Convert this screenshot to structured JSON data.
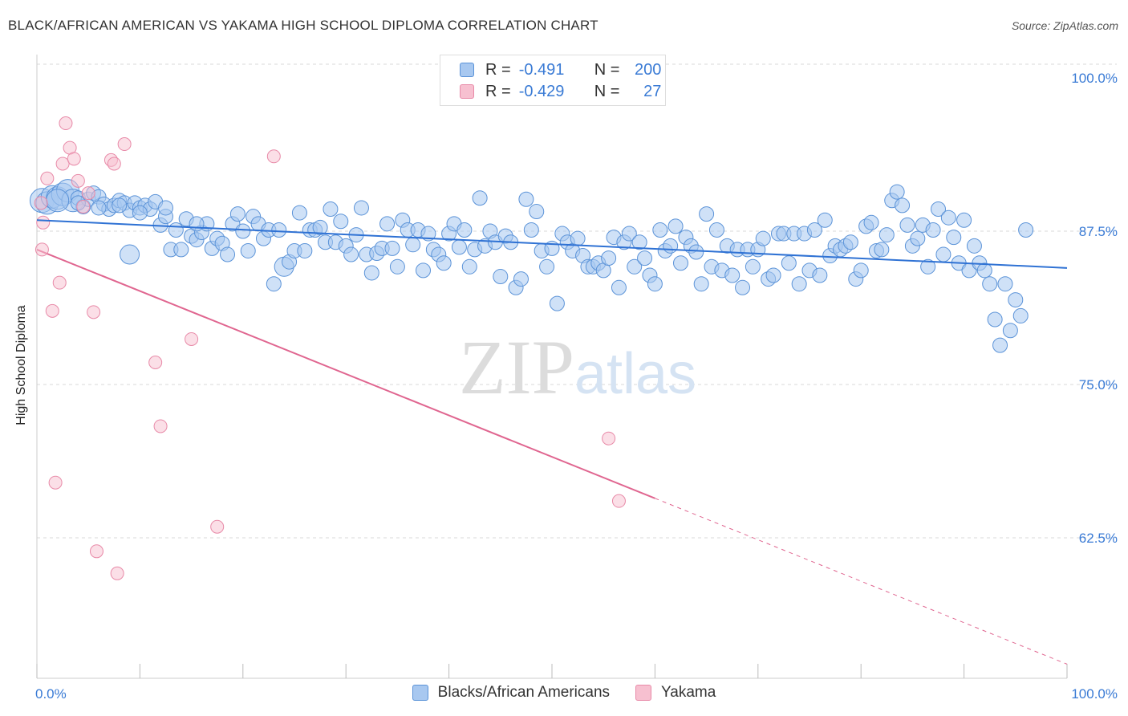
{
  "title": "BLACK/AFRICAN AMERICAN VS YAKAMA HIGH SCHOOL DIPLOMA CORRELATION CHART",
  "source": "Source: ZipAtlas.com",
  "watermark": "ZIPatlas",
  "legend_top": {
    "rows": [
      {
        "r_label": "R =",
        "r_value": "-0.491",
        "n_label": "N =",
        "n_value": "200"
      },
      {
        "r_label": "R =",
        "r_value": "-0.429",
        "n_label": "N =",
        "n_value": "27"
      }
    ]
  },
  "colors": {
    "blue_fill": "#a8c8f0",
    "blue_stroke": "#5b93d8",
    "blue_line": "#2f72d4",
    "pink_fill": "#f7c0d0",
    "pink_stroke": "#e88aa8",
    "pink_line": "#e06690",
    "tick_label": "#3a7bd5",
    "grid": "#d8d8d8"
  },
  "chart_data": {
    "type": "scatter",
    "title": "BLACK/AFRICAN AMERICAN VS YAKAMA HIGH SCHOOL DIPLOMA CORRELATION CHART",
    "xlabel": "",
    "ylabel": "High School Diploma",
    "xlim": [
      0,
      100
    ],
    "ylim": [
      50,
      102
    ],
    "x_ticks": [
      "0.0%",
      "100.0%"
    ],
    "y_ticks": [
      {
        "value": 100,
        "label": "100.0%"
      },
      {
        "value": 87.5,
        "label": "87.5%"
      },
      {
        "value": 75,
        "label": "75.0%"
      },
      {
        "value": 62.5,
        "label": "62.5%"
      }
    ],
    "grid": true,
    "legend_position": "bottom",
    "series": [
      {
        "name": "Blacks/African Americans",
        "color": "#5b93d8",
        "trend": {
          "x": [
            0,
            100
          ],
          "y": [
            88.4,
            84.5
          ],
          "dashed_from": null
        },
        "points": [
          [
            0.5,
            90.0
          ],
          [
            1.0,
            89.8
          ],
          [
            1.5,
            90.3
          ],
          [
            2.0,
            90.2
          ],
          [
            2.5,
            90.5
          ],
          [
            3.0,
            90.8
          ],
          [
            3.5,
            90.0
          ],
          [
            4.0,
            90.2
          ],
          [
            4.5,
            89.5
          ],
          [
            5.0,
            90.1
          ],
          [
            5.5,
            90.6
          ],
          [
            6.0,
            90.3
          ],
          [
            6.5,
            89.7
          ],
          [
            7.0,
            89.3
          ],
          [
            7.5,
            89.6
          ],
          [
            8.0,
            90.0
          ],
          [
            8.5,
            89.8
          ],
          [
            9.0,
            89.2
          ],
          [
            9.5,
            89.8
          ],
          [
            10.0,
            89.4
          ],
          [
            10.5,
            89.6
          ],
          [
            11.0,
            89.3
          ],
          [
            11.5,
            89.9
          ],
          [
            12.0,
            88.0
          ],
          [
            12.5,
            88.7
          ],
          [
            13.0,
            86.0
          ],
          [
            13.5,
            87.6
          ],
          [
            14.0,
            86.0
          ],
          [
            14.5,
            88.5
          ],
          [
            15.0,
            87.1
          ],
          [
            15.5,
            86.8
          ],
          [
            16.0,
            87.4
          ],
          [
            16.5,
            88.1
          ],
          [
            17.0,
            86.1
          ],
          [
            17.5,
            86.9
          ],
          [
            18.0,
            86.5
          ],
          [
            18.5,
            85.6
          ],
          [
            19.0,
            88.1
          ],
          [
            19.5,
            88.9
          ],
          [
            20.0,
            87.5
          ],
          [
            20.5,
            85.9
          ],
          [
            21.0,
            88.7
          ],
          [
            21.5,
            88.1
          ],
          [
            22.0,
            86.9
          ],
          [
            22.5,
            87.6
          ],
          [
            23.0,
            83.2
          ],
          [
            23.5,
            87.6
          ],
          [
            24.0,
            84.6
          ],
          [
            24.5,
            85.0
          ],
          [
            25.0,
            85.9
          ],
          [
            25.5,
            89.0
          ],
          [
            26.0,
            85.9
          ],
          [
            26.5,
            87.6
          ],
          [
            27.0,
            87.6
          ],
          [
            27.5,
            87.8
          ],
          [
            28.0,
            86.6
          ],
          [
            28.5,
            89.3
          ],
          [
            29.0,
            86.6
          ],
          [
            29.5,
            88.3
          ],
          [
            30.0,
            86.3
          ],
          [
            30.5,
            85.6
          ],
          [
            31.0,
            87.2
          ],
          [
            31.5,
            89.4
          ],
          [
            32.0,
            85.6
          ],
          [
            32.5,
            84.1
          ],
          [
            33.0,
            85.7
          ],
          [
            33.5,
            86.1
          ],
          [
            34.0,
            88.1
          ],
          [
            34.5,
            86.1
          ],
          [
            35.0,
            84.6
          ],
          [
            35.5,
            88.4
          ],
          [
            36.0,
            87.6
          ],
          [
            36.5,
            86.4
          ],
          [
            37.0,
            87.6
          ],
          [
            37.5,
            84.3
          ],
          [
            38.0,
            87.3
          ],
          [
            38.5,
            86.0
          ],
          [
            39.0,
            85.6
          ],
          [
            39.5,
            84.9
          ],
          [
            40.0,
            87.3
          ],
          [
            40.5,
            88.1
          ],
          [
            41.0,
            86.2
          ],
          [
            41.5,
            87.6
          ],
          [
            42.0,
            84.6
          ],
          [
            42.5,
            86.0
          ],
          [
            43.0,
            90.2
          ],
          [
            43.5,
            86.3
          ],
          [
            44.0,
            87.5
          ],
          [
            44.5,
            86.6
          ],
          [
            45.0,
            83.8
          ],
          [
            45.5,
            87.1
          ],
          [
            46.0,
            86.6
          ],
          [
            46.5,
            82.9
          ],
          [
            47.0,
            83.6
          ],
          [
            47.5,
            90.1
          ],
          [
            48.0,
            87.6
          ],
          [
            48.5,
            89.1
          ],
          [
            49.0,
            85.9
          ],
          [
            49.5,
            84.6
          ],
          [
            50.0,
            86.1
          ],
          [
            50.5,
            81.6
          ],
          [
            51.0,
            87.3
          ],
          [
            51.5,
            86.6
          ],
          [
            52.0,
            85.9
          ],
          [
            52.5,
            86.9
          ],
          [
            53.0,
            85.5
          ],
          [
            53.5,
            84.6
          ],
          [
            54.0,
            84.6
          ],
          [
            54.5,
            84.9
          ],
          [
            55.0,
            84.3
          ],
          [
            55.5,
            85.3
          ],
          [
            56.0,
            87.0
          ],
          [
            56.5,
            82.9
          ],
          [
            57.0,
            86.6
          ],
          [
            57.5,
            87.3
          ],
          [
            58.0,
            84.6
          ],
          [
            58.5,
            86.6
          ],
          [
            59.0,
            85.3
          ],
          [
            59.5,
            83.9
          ],
          [
            60.0,
            83.2
          ],
          [
            60.5,
            87.6
          ],
          [
            61.0,
            85.9
          ],
          [
            61.5,
            86.3
          ],
          [
            62.0,
            87.9
          ],
          [
            62.5,
            84.9
          ],
          [
            63.0,
            87.0
          ],
          [
            63.5,
            86.3
          ],
          [
            64.0,
            85.8
          ],
          [
            64.5,
            83.2
          ],
          [
            65.0,
            88.9
          ],
          [
            65.5,
            84.6
          ],
          [
            66.0,
            87.6
          ],
          [
            66.5,
            84.3
          ],
          [
            67.0,
            86.3
          ],
          [
            67.5,
            83.9
          ],
          [
            68.0,
            86.0
          ],
          [
            68.5,
            82.9
          ],
          [
            69.0,
            86.0
          ],
          [
            69.5,
            84.6
          ],
          [
            70.0,
            86.0
          ],
          [
            70.5,
            86.9
          ],
          [
            71.0,
            83.6
          ],
          [
            71.5,
            83.9
          ],
          [
            72.0,
            87.3
          ],
          [
            72.5,
            87.3
          ],
          [
            73.0,
            84.9
          ],
          [
            73.5,
            87.3
          ],
          [
            74.0,
            83.2
          ],
          [
            74.5,
            87.3
          ],
          [
            75.0,
            84.3
          ],
          [
            75.5,
            87.6
          ],
          [
            76.0,
            83.9
          ],
          [
            76.5,
            88.4
          ],
          [
            77.0,
            85.5
          ],
          [
            77.5,
            86.3
          ],
          [
            78.0,
            86.0
          ],
          [
            78.5,
            86.3
          ],
          [
            79.0,
            86.6
          ],
          [
            79.5,
            83.6
          ],
          [
            80.0,
            84.3
          ],
          [
            80.5,
            87.9
          ],
          [
            81.0,
            88.2
          ],
          [
            81.5,
            85.9
          ],
          [
            82.0,
            86.0
          ],
          [
            82.5,
            87.2
          ],
          [
            83.0,
            90.0
          ],
          [
            83.5,
            90.7
          ],
          [
            84.0,
            89.6
          ],
          [
            84.5,
            88.0
          ],
          [
            85.0,
            86.3
          ],
          [
            85.5,
            86.9
          ],
          [
            86.0,
            88.0
          ],
          [
            86.5,
            84.6
          ],
          [
            87.0,
            87.6
          ],
          [
            87.5,
            89.3
          ],
          [
            88.0,
            85.6
          ],
          [
            88.5,
            88.6
          ],
          [
            89.0,
            87.0
          ],
          [
            89.5,
            84.9
          ],
          [
            90.0,
            88.4
          ],
          [
            90.5,
            84.3
          ],
          [
            91.0,
            86.3
          ],
          [
            91.5,
            84.9
          ],
          [
            92.0,
            84.3
          ],
          [
            92.5,
            83.2
          ],
          [
            93.0,
            80.3
          ],
          [
            93.5,
            78.2
          ],
          [
            94.0,
            83.2
          ],
          [
            94.5,
            79.4
          ],
          [
            95.0,
            81.9
          ],
          [
            95.5,
            80.6
          ],
          [
            96.0,
            87.6
          ],
          [
            9.0,
            85.6
          ],
          [
            2.0,
            90.0
          ],
          [
            4.0,
            89.8
          ],
          [
            6.0,
            89.4
          ],
          [
            8.0,
            89.6
          ],
          [
            10.0,
            89.0
          ],
          [
            12.5,
            89.4
          ],
          [
            15.5,
            88.1
          ]
        ]
      },
      {
        "name": "Yakama",
        "color": "#e88aa8",
        "trend": {
          "x": [
            0,
            100
          ],
          "y": [
            86.0,
            52.2
          ],
          "dashed_from": 60
        },
        "points": [
          [
            0.4,
            89.8
          ],
          [
            0.6,
            88.2
          ],
          [
            0.5,
            86.0
          ],
          [
            1.0,
            91.8
          ],
          [
            1.5,
            81.0
          ],
          [
            1.8,
            67.0
          ],
          [
            2.2,
            83.3
          ],
          [
            2.5,
            93.0
          ],
          [
            2.8,
            96.3
          ],
          [
            3.2,
            94.3
          ],
          [
            3.6,
            93.4
          ],
          [
            4.0,
            91.6
          ],
          [
            4.5,
            89.5
          ],
          [
            5.0,
            90.6
          ],
          [
            5.5,
            80.9
          ],
          [
            5.8,
            61.4
          ],
          [
            7.2,
            93.3
          ],
          [
            7.5,
            93.0
          ],
          [
            7.8,
            59.6
          ],
          [
            8.5,
            94.6
          ],
          [
            11.5,
            76.8
          ],
          [
            12.0,
            71.6
          ],
          [
            15.0,
            78.7
          ],
          [
            17.5,
            63.4
          ],
          [
            23.0,
            93.6
          ],
          [
            55.5,
            70.6
          ],
          [
            56.5,
            65.5
          ]
        ]
      }
    ]
  },
  "bottom_legend": [
    "Blacks/African Americans",
    "Yakama"
  ]
}
